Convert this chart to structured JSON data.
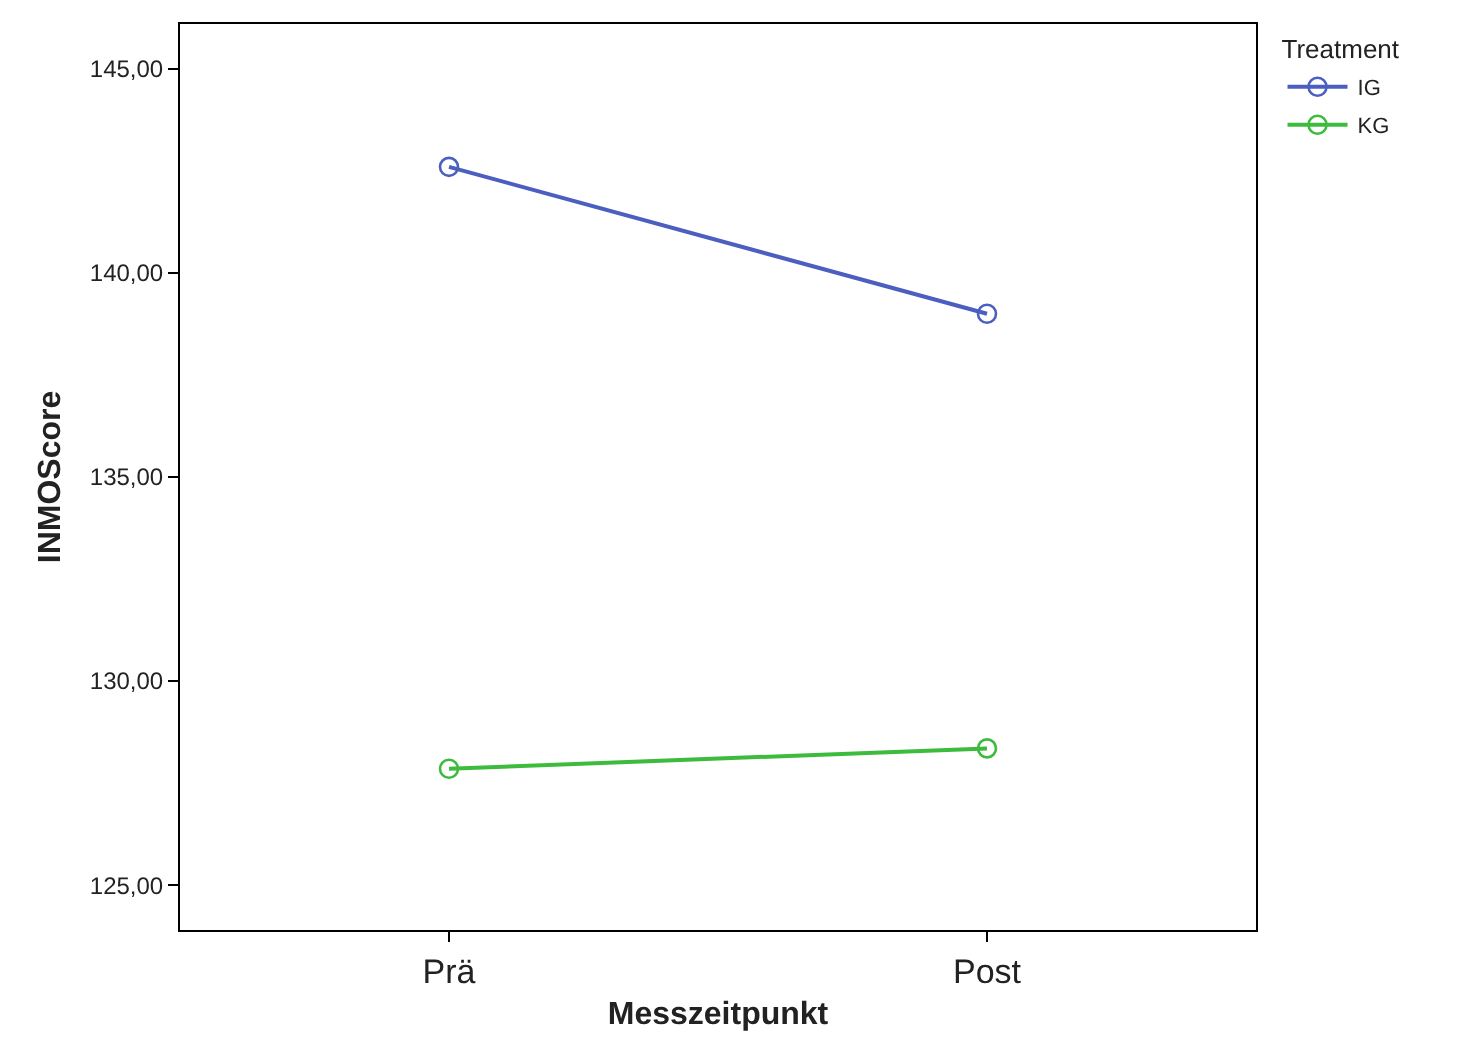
{
  "chart_data": {
    "type": "line",
    "xlabel": "Messzeitpunkt",
    "ylabel": "INMOScore",
    "legend_title": "Treatment",
    "categories": [
      "Prä",
      "Post"
    ],
    "series": [
      {
        "name": "IG",
        "color": "#4b5fc0",
        "values": [
          142.6,
          139.0
        ]
      },
      {
        "name": "KG",
        "color": "#3dbb3d",
        "values": [
          127.85,
          128.35
        ]
      }
    ],
    "ylim": [
      123.9,
      146.1
    ],
    "yticks": [
      {
        "value": 125,
        "label": "125,00"
      },
      {
        "value": 130,
        "label": "130,00"
      },
      {
        "value": 135,
        "label": "135,00"
      },
      {
        "value": 140,
        "label": "140,00"
      },
      {
        "value": 145,
        "label": "145,00"
      }
    ],
    "grid": false,
    "legend": "top right",
    "marker": "circle",
    "line_style": "solid"
  }
}
